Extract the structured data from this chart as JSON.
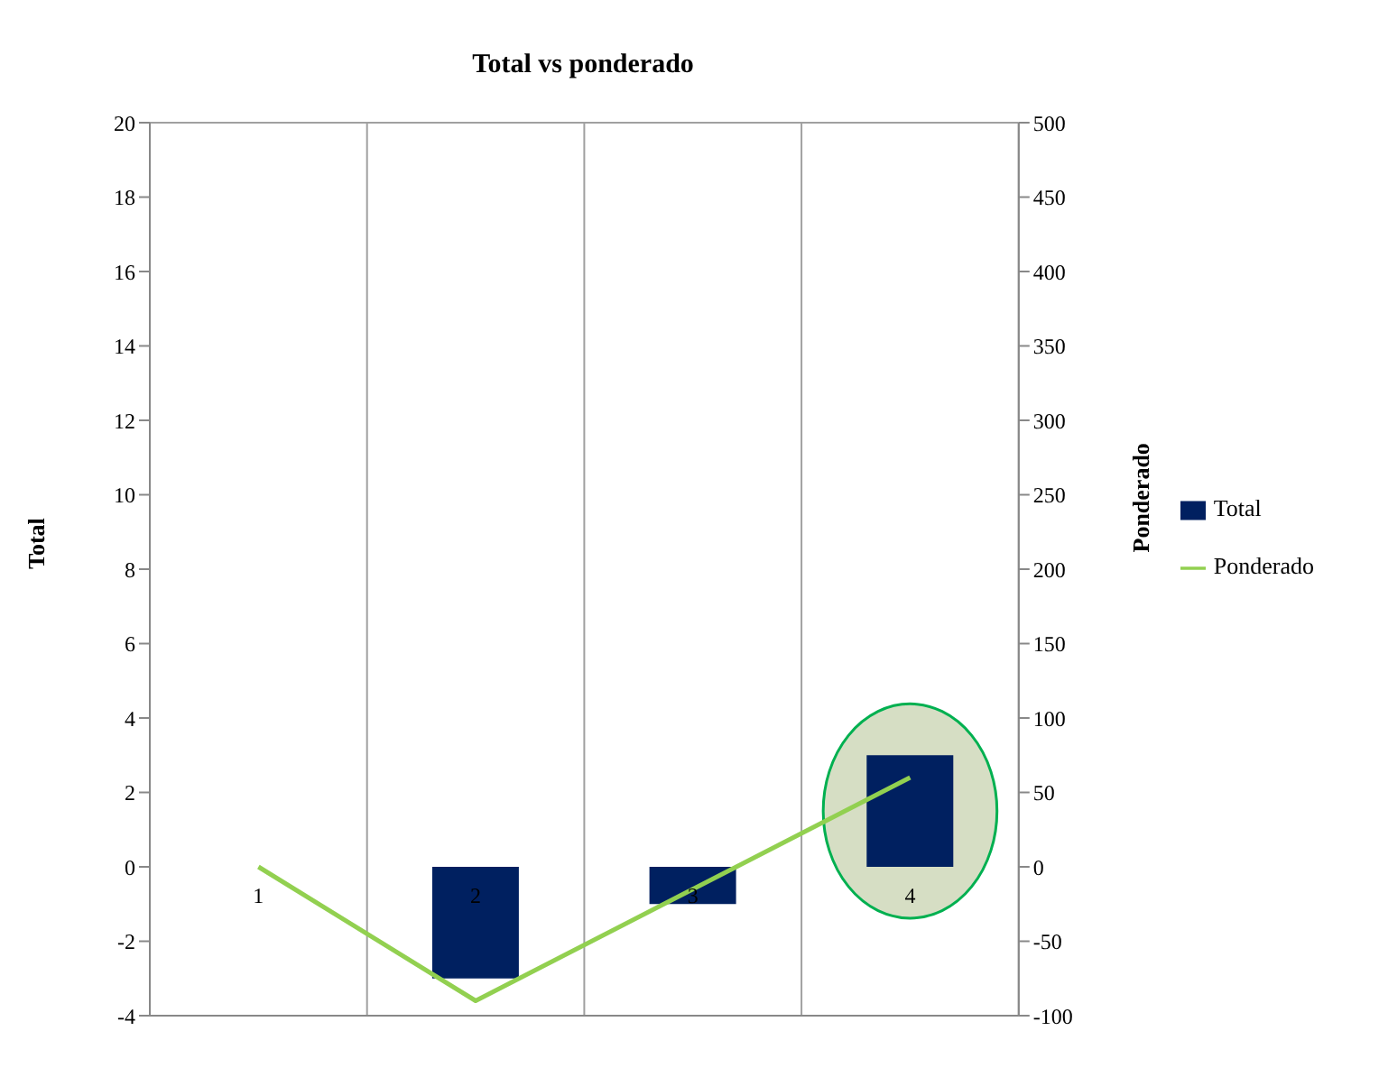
{
  "chart_data": {
    "type": "bar",
    "title": "Total vs ponderado",
    "ylabel": "Total",
    "y2label": "Ponderado",
    "categories": [
      "1",
      "2",
      "3",
      "4"
    ],
    "series": [
      {
        "name": "Total",
        "color": "#002060",
        "values": [
          0,
          -3,
          -1,
          3
        ]
      },
      {
        "name": "Ponderado",
        "type": "line",
        "axis": "y2",
        "color": "#92d050",
        "values": [
          0,
          -90,
          -15,
          60
        ]
      }
    ],
    "ylim": [
      -4,
      20
    ],
    "yticks": [
      -4,
      -2,
      0,
      2,
      4,
      6,
      8,
      10,
      12,
      14,
      16,
      18,
      20
    ],
    "y2lim": [
      -100,
      500
    ],
    "y2ticks": [
      -100,
      -50,
      0,
      50,
      100,
      150,
      200,
      250,
      300,
      350,
      400,
      450,
      500
    ],
    "grid": true,
    "legend": "right",
    "marker": "none",
    "line_style": "solid"
  }
}
